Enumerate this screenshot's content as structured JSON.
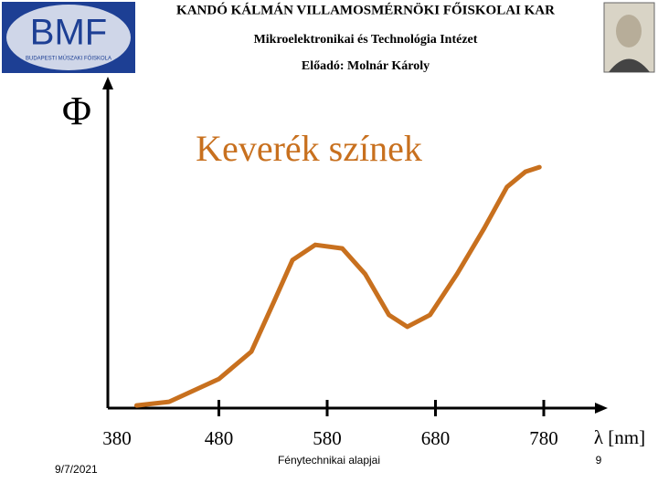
{
  "header": {
    "institution": "KANDÓ KÁLMÁN VILLAMOSMÉRNÖKI FŐISKOLAI KAR",
    "institute": "Mikroelektronikai és Technológia Intézet",
    "lecturer": "Előadó: Molnár Károly",
    "logo_text": "BMF",
    "logo_subtext": "BUDAPESTI MŰSZAKI FŐISKOLA"
  },
  "chart_data": {
    "type": "line",
    "title": "Keverék színek",
    "y_label": "Φ",
    "x_label": "λ [nm]",
    "x": [
      404,
      434,
      480,
      510,
      531,
      548,
      569,
      594,
      615,
      637,
      654,
      675,
      700,
      725,
      746,
      763,
      776
    ],
    "series": [
      {
        "color": "#c8701e",
        "values": [
          0.8,
          1.9,
          8.8,
          17.1,
          32.3,
          44.8,
          49.4,
          48.3,
          40.6,
          28.2,
          24.6,
          28.2,
          40.6,
          54.4,
          66.9,
          71.5,
          72.9
        ]
      }
    ],
    "xlim": [
      380,
      840
    ],
    "xticks": [
      380,
      480,
      580,
      680,
      780
    ],
    "ylim": [
      0,
      100
    ]
  },
  "footer": {
    "date": "9/7/2021",
    "subject": "Fénytechnikai alapjai",
    "page": "9"
  }
}
